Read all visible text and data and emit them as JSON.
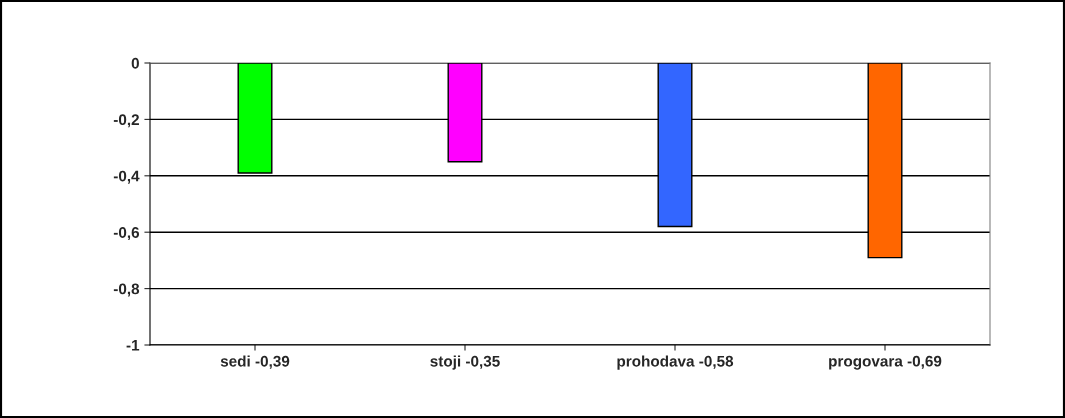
{
  "chart_data": {
    "type": "bar",
    "categories": [
      "sedi -0,39",
      "stoji -0,35",
      "prohodava -0,58",
      "progovara -0,69"
    ],
    "values": [
      -0.39,
      -0.35,
      -0.58,
      -0.69
    ],
    "colors": [
      "#00ff00",
      "#ff00ff",
      "#3366ff",
      "#ff6600"
    ],
    "ylim": [
      -1,
      0
    ],
    "yticks": [
      {
        "value": -1,
        "label": "-1"
      },
      {
        "value": -0.8,
        "label": "-0,8"
      },
      {
        "value": -0.6,
        "label": "-0,6"
      },
      {
        "value": -0.4,
        "label": "-0,4"
      },
      {
        "value": -0.2,
        "label": "-0,2"
      },
      {
        "value": 0,
        "label": "0"
      }
    ],
    "grid": "y",
    "legend": false
  }
}
